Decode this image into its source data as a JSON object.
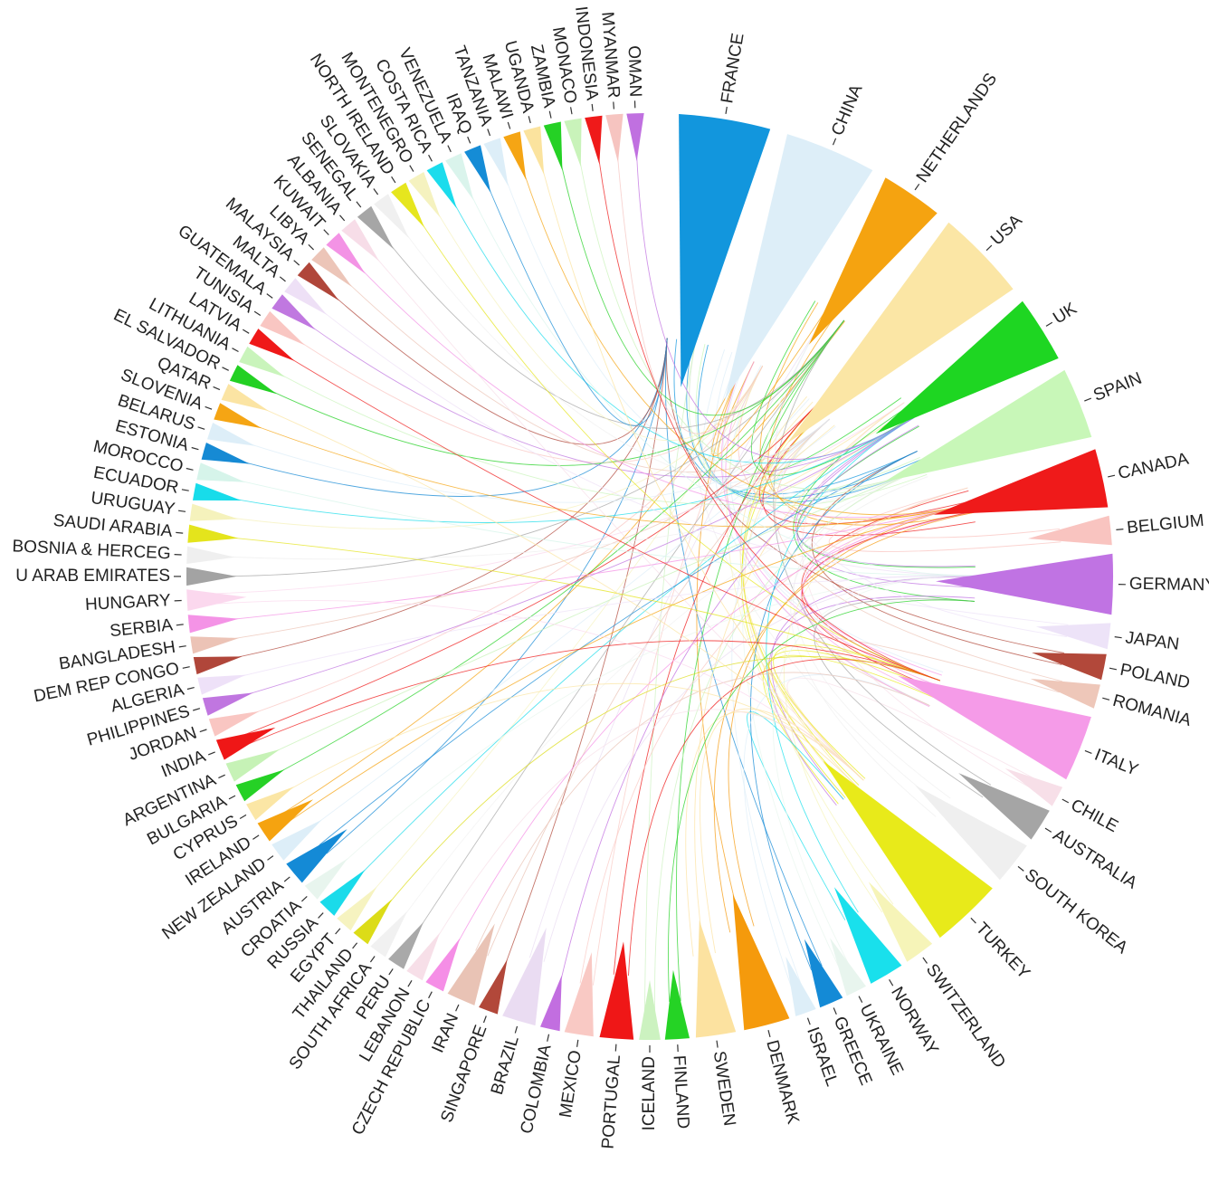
{
  "countries": [
    {
      "name": "FRANCE",
      "color": "#1296dd",
      "size": 1.0
    },
    {
      "name": "CHINA",
      "color": "#ddeef8",
      "size": 1.0
    },
    {
      "name": "NETHERLANDS",
      "color": "#f5a310",
      "size": 0.62
    },
    {
      "name": "USA",
      "color": "#fbe6a5",
      "size": 1.0
    },
    {
      "name": "UK",
      "color": "#1ed622",
      "size": 0.68
    },
    {
      "name": "SPAIN",
      "color": "#c8f7b8",
      "size": 0.74
    },
    {
      "name": "CANADA",
      "color": "#ef1a1a",
      "size": 0.58
    },
    {
      "name": "BELGIUM",
      "color": "#f9c4c0",
      "size": 0.2
    },
    {
      "name": "GERMANY",
      "color": "#c073e3",
      "size": 0.6
    },
    {
      "name": "JAPAN",
      "color": "#ede3f8",
      "size": 0.16
    },
    {
      "name": "POLAND",
      "color": "#b2483a",
      "size": 0.16
    },
    {
      "name": "ROMANIA",
      "color": "#eec7b9",
      "size": 0.14
    },
    {
      "name": "ITALY",
      "color": "#f59be8",
      "size": 0.68
    },
    {
      "name": "CHILE",
      "color": "#f7dfe8",
      "size": 0.1
    },
    {
      "name": "AUSTRALIA",
      "color": "#a5a5a5",
      "size": 0.26
    },
    {
      "name": "SOUTH KOREA",
      "color": "#efefef",
      "size": 0.38
    },
    {
      "name": "TURKEY",
      "color": "#e8ea1a",
      "size": 0.74
    },
    {
      "name": "SWITZERLAND",
      "color": "#f6f4b8",
      "size": 0.22
    },
    {
      "name": "NORWAY",
      "color": "#19e0ec",
      "size": 0.28
    },
    {
      "name": "UKRAINE",
      "color": "#e8f5ee",
      "size": 0.1
    },
    {
      "name": "GREECE",
      "color": "#148ad6",
      "size": 0.14
    },
    {
      "name": "ISRAEL",
      "color": "#ddeef8",
      "size": 0.1
    },
    {
      "name": "DENMARK",
      "color": "#f59a0c",
      "size": 0.42
    },
    {
      "name": "SWEDEN",
      "color": "#fce2a0",
      "size": 0.34
    },
    {
      "name": "FINLAND",
      "color": "#25d325",
      "size": 0.14
    },
    {
      "name": "ICELAND",
      "color": "#ccf2c0",
      "size": 0.1
    },
    {
      "name": "PORTUGAL",
      "color": "#ef1717",
      "size": 0.26
    },
    {
      "name": "MEXICO",
      "color": "#f9c9c4",
      "size": 0.2
    },
    {
      "name": "COLOMBIA",
      "color": "#c26ee0",
      "size": 0.08
    },
    {
      "name": "BRAZIL",
      "color": "#eadcf2",
      "size": 0.26
    },
    {
      "name": "SINGAPORE",
      "color": "#b2483a",
      "size": 0.08
    },
    {
      "name": "IRAN",
      "color": "#e9c3b5",
      "size": 0.2
    },
    {
      "name": "CZECH REPUBLIC",
      "color": "#f58ee6",
      "size": 0.08
    },
    {
      "name": "LEBANON",
      "color": "#f7dfe8",
      "size": 0.06
    },
    {
      "name": "PERU",
      "color": "#a9a9a9",
      "size": 0.06
    },
    {
      "name": "SOUTH AFRICA",
      "color": "#f1f1f1",
      "size": 0.06
    },
    {
      "name": "THAILAND",
      "color": "#dcdc18",
      "size": 0.06
    },
    {
      "name": "EGYPT",
      "color": "#f6f3c0",
      "size": 0.06
    },
    {
      "name": "RUSSIA",
      "color": "#1adbea",
      "size": 0.08
    },
    {
      "name": "CROATIA",
      "color": "#e8f5ee",
      "size": 0.06
    },
    {
      "name": "AUSTRIA",
      "color": "#148ad6",
      "size": 0.14
    },
    {
      "name": "NEW ZEALAND",
      "color": "#ddeef8",
      "size": 0.08
    },
    {
      "name": "IRELAND",
      "color": "#f5a310",
      "size": 0.1
    },
    {
      "name": "CYPRUS",
      "color": "#fbe6a5",
      "size": 0.06
    },
    {
      "name": "BULGARIA",
      "color": "#26d126",
      "size": 0.06
    },
    {
      "name": "ARGENTINA",
      "color": "#c6f2b6",
      "size": 0.08
    },
    {
      "name": "INDIA",
      "color": "#ef1717",
      "size": 0.1
    },
    {
      "name": "JORDAN",
      "color": "#f9c6c2",
      "size": 0.06
    },
    {
      "name": "PHILIPPINES",
      "color": "#c076e0",
      "size": 0.06
    },
    {
      "name": "ALGERIA",
      "color": "#eee1f8",
      "size": 0.05
    },
    {
      "name": "DEM REP CONGO",
      "color": "#b0463a",
      "size": 0.05
    },
    {
      "name": "BANGLADESH",
      "color": "#ecc3b6",
      "size": 0.05
    },
    {
      "name": "SERBIA",
      "color": "#f493e6",
      "size": 0.06
    },
    {
      "name": "HUNGARY",
      "color": "#fbd8ee",
      "size": 0.1
    },
    {
      "name": "U ARAB EMIRATES",
      "color": "#a3a3a3",
      "size": 0.06
    },
    {
      "name": "BOSNIA & HERCEG",
      "color": "#efefef",
      "size": 0.05
    },
    {
      "name": "SAUDI ARABIA",
      "color": "#e4e41c",
      "size": 0.06
    },
    {
      "name": "URUGUAY",
      "color": "#f5f2bc",
      "size": 0.05
    },
    {
      "name": "ECUADOR",
      "color": "#18dcea",
      "size": 0.05
    },
    {
      "name": "MOROCCO",
      "color": "#d6f4ea",
      "size": 0.05
    },
    {
      "name": "ESTONIA",
      "color": "#168ad4",
      "size": 0.05
    },
    {
      "name": "BELARUS",
      "color": "#ddeef8",
      "size": 0.05
    },
    {
      "name": "SLOVENIA",
      "color": "#f5a514",
      "size": 0.05
    },
    {
      "name": "QATAR",
      "color": "#fbe4a3",
      "size": 0.05
    },
    {
      "name": "EL SALVADOR",
      "color": "#23d023",
      "size": 0.05
    },
    {
      "name": "LITHUANIA",
      "color": "#c9f4bb",
      "size": 0.05
    },
    {
      "name": "LATVIA",
      "color": "#ef1919",
      "size": 0.05
    },
    {
      "name": "TUNISIA",
      "color": "#f9c6c2",
      "size": 0.05
    },
    {
      "name": "GUATEMALA",
      "color": "#c078e0",
      "size": 0.05
    },
    {
      "name": "MALTA",
      "color": "#eee0f6",
      "size": 0.05
    },
    {
      "name": "MALAYSIA",
      "color": "#b0463a",
      "size": 0.05
    },
    {
      "name": "LIBYA",
      "color": "#ecc5b8",
      "size": 0.05
    },
    {
      "name": "KUWAIT",
      "color": "#f393e5",
      "size": 0.05
    },
    {
      "name": "ALBANIA",
      "color": "#f7dde8",
      "size": 0.05
    },
    {
      "name": "SENEGAL",
      "color": "#a6a6a6",
      "size": 0.05
    },
    {
      "name": "SLOVAKIA",
      "color": "#f0f0f0",
      "size": 0.05
    },
    {
      "name": "NORTH IRELAND",
      "color": "#e6e61e",
      "size": 0.05
    },
    {
      "name": "MONTENEGRO",
      "color": "#f5f2bf",
      "size": 0.05
    },
    {
      "name": "COSTA RICA",
      "color": "#1bdcec",
      "size": 0.05
    },
    {
      "name": "VENEZUELA",
      "color": "#daf4ec",
      "size": 0.05
    },
    {
      "name": "IRAQ",
      "color": "#158cd6",
      "size": 0.05
    },
    {
      "name": "TANZANIA",
      "color": "#ddeef8",
      "size": 0.05
    },
    {
      "name": "MALAWI",
      "color": "#f5a514",
      "size": 0.05
    },
    {
      "name": "UGANDA",
      "color": "#fbe39e",
      "size": 0.05
    },
    {
      "name": "ZAMBIA",
      "color": "#25d125",
      "size": 0.05
    },
    {
      "name": "MONACO",
      "color": "#c9f3ba",
      "size": 0.05
    },
    {
      "name": "INDONESIA",
      "color": "#ef1a1a",
      "size": 0.05
    },
    {
      "name": "MYANMAR",
      "color": "#f6c4c0",
      "size": 0.05
    },
    {
      "name": "OMAN",
      "color": "#c070e0",
      "size": 0.05
    }
  ]
}
